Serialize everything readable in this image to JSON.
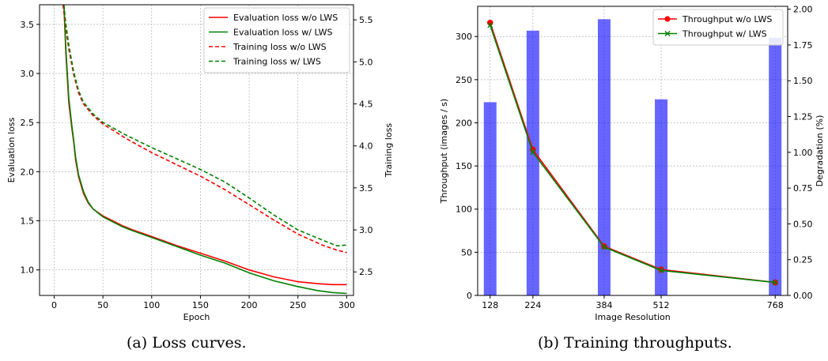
{
  "captions": {
    "a": "(a) Loss curves.",
    "b": "(b) Training throughputs."
  },
  "chart_data": [
    {
      "type": "line",
      "xlabel": "Epoch",
      "ylabel": "Evaluation loss",
      "y2label": "Training loss",
      "xlim": [
        -15,
        307
      ],
      "ylim": [
        0.74,
        3.7
      ],
      "y2lim": [
        2.22,
        5.68
      ],
      "xticks": [
        0,
        50,
        100,
        150,
        200,
        250,
        300
      ],
      "yticks": [
        1.0,
        1.5,
        2.0,
        2.5,
        3.0,
        3.5
      ],
      "y2ticks": [
        2.5,
        3.0,
        3.5,
        4.0,
        4.5,
        5.0,
        5.5
      ],
      "grid": true,
      "legend_position": "top-right",
      "series": [
        {
          "name": "Evaluation loss w/o LWS",
          "axis": "left",
          "color": "#ff0000",
          "dash": "solid",
          "x": [
            10,
            12,
            15,
            18,
            20,
            22,
            25,
            30,
            35,
            40,
            50,
            60,
            70,
            80,
            100,
            125,
            150,
            175,
            200,
            225,
            250,
            270,
            285,
            300
          ],
          "y": [
            3.7,
            3.2,
            2.7,
            2.45,
            2.3,
            2.12,
            1.95,
            1.78,
            1.68,
            1.62,
            1.55,
            1.5,
            1.45,
            1.41,
            1.34,
            1.25,
            1.17,
            1.09,
            1.0,
            0.93,
            0.88,
            0.86,
            0.85,
            0.85
          ]
        },
        {
          "name": "Evaluation loss w/ LWS",
          "axis": "left",
          "color": "#008000",
          "dash": "solid",
          "x": [
            10,
            12,
            15,
            18,
            20,
            22,
            25,
            30,
            35,
            40,
            50,
            60,
            70,
            80,
            100,
            125,
            150,
            175,
            200,
            225,
            250,
            270,
            285,
            300
          ],
          "y": [
            3.7,
            3.25,
            2.75,
            2.48,
            2.32,
            2.15,
            1.97,
            1.8,
            1.69,
            1.62,
            1.54,
            1.49,
            1.44,
            1.4,
            1.33,
            1.24,
            1.15,
            1.07,
            0.97,
            0.89,
            0.83,
            0.79,
            0.77,
            0.76
          ]
        },
        {
          "name": "Training loss w/o LWS",
          "axis": "right",
          "color": "#ff0000",
          "dash": "dashed",
          "x": [
            9,
            12,
            15,
            20,
            25,
            30,
            40,
            50,
            75,
            100,
            125,
            150,
            175,
            200,
            225,
            250,
            275,
            290,
            300
          ],
          "y": [
            5.68,
            5.4,
            5.15,
            4.85,
            4.63,
            4.5,
            4.36,
            4.26,
            4.08,
            3.92,
            3.78,
            3.64,
            3.48,
            3.3,
            3.12,
            2.95,
            2.82,
            2.76,
            2.73
          ]
        },
        {
          "name": "Training loss w/ LWS",
          "axis": "right",
          "color": "#008000",
          "dash": "dashed",
          "x": [
            10,
            12,
            15,
            20,
            25,
            30,
            40,
            50,
            75,
            100,
            125,
            150,
            175,
            200,
            225,
            250,
            275,
            290,
            300
          ],
          "y": [
            5.68,
            5.45,
            5.2,
            4.88,
            4.66,
            4.52,
            4.38,
            4.28,
            4.12,
            3.98,
            3.85,
            3.72,
            3.57,
            3.38,
            3.18,
            3.0,
            2.88,
            2.81,
            2.82
          ]
        }
      ]
    },
    {
      "type": "bar",
      "xlabel": "Image Resolution",
      "ylabel": "Throughput (images / s)",
      "y2label": "Degradation (%)",
      "categories": [
        "128",
        "224",
        "384",
        "512",
        "768"
      ],
      "xlim": [
        100,
        796
      ],
      "ylim": [
        0,
        335
      ],
      "y2lim": [
        0,
        2.02
      ],
      "yticks": [
        0,
        50,
        100,
        150,
        200,
        250,
        300
      ],
      "y2ticks": [
        0.0,
        0.25,
        0.5,
        0.75,
        1.0,
        1.25,
        1.5,
        1.75,
        2.0
      ],
      "grid": true,
      "legend_position": "top-right",
      "bar_series": {
        "axis": "right",
        "color": "#0000ff",
        "opacity": 0.6,
        "x": [
          128,
          224,
          384,
          512,
          768
        ],
        "values": [
          1.35,
          1.85,
          1.93,
          1.37,
          1.8
        ]
      },
      "series": [
        {
          "name": "Throughput w/o LWS",
          "axis": "left",
          "color": "#ff0000",
          "marker": "circle",
          "x": [
            128,
            224,
            384,
            512,
            768
          ],
          "y": [
            316,
            169,
            57,
            30,
            15
          ]
        },
        {
          "name": "Throughput w/ LWS",
          "axis": "left",
          "color": "#008000",
          "marker": "x",
          "x": [
            128,
            224,
            384,
            512,
            768
          ],
          "y": [
            313,
            166,
            56,
            29,
            15
          ]
        }
      ]
    }
  ]
}
